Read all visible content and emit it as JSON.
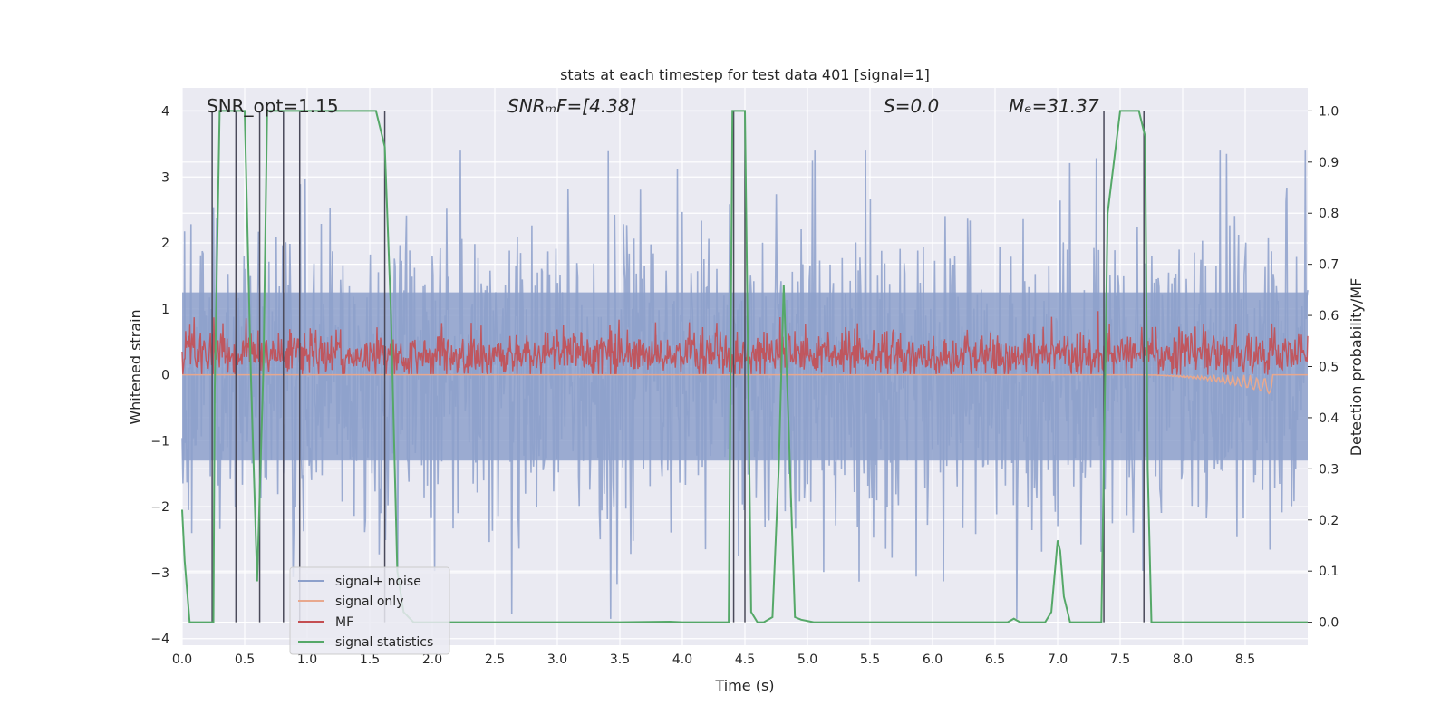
{
  "chart_data": {
    "type": "line",
    "title": "stats at each timestep for test data 401 [signal=1]",
    "xlabel": "Time (s)",
    "ylabel_left": "Whitened strain",
    "ylabel_right": "Detection probability/MF",
    "xlim": [
      0.0,
      9.0
    ],
    "ylim_left": [
      -4.1,
      4.35
    ],
    "ylim_right": [
      -0.045,
      1.045
    ],
    "x_ticks": [
      "0.0",
      "0.5",
      "1.0",
      "1.5",
      "2.0",
      "2.5",
      "3.0",
      "3.5",
      "4.0",
      "4.5",
      "5.0",
      "5.5",
      "6.0",
      "6.5",
      "7.0",
      "7.5",
      "8.0",
      "8.5"
    ],
    "y_left_ticks": [
      "−4",
      "−3",
      "−2",
      "−1",
      "0",
      "1",
      "2",
      "3",
      "4"
    ],
    "y_right_ticks": [
      "0.0",
      "0.1",
      "0.2",
      "0.3",
      "0.4",
      "0.5",
      "0.6",
      "0.7",
      "0.8",
      "0.9",
      "1.0"
    ],
    "grid": true,
    "legend_position": "lower-left",
    "annotations": [
      {
        "id": "snr-opt",
        "text": "SNR_opt=1.15"
      },
      {
        "id": "snr-mf",
        "text": "SNRₘF=[4.38]"
      },
      {
        "id": "s",
        "text": "S=0.0"
      },
      {
        "id": "mc",
        "text": "Mₑ=31.37"
      }
    ],
    "series": [
      {
        "name": "signal+ noise",
        "color": "#8da0cb",
        "axis": "left",
        "description": "whitened strain noise, amplitude approx -3.7..3.4"
      },
      {
        "name": "signal only",
        "color": "#e8a88e",
        "axis": "left",
        "description": "near zero, small chirp near t=8.2-8.7 down to -0.3"
      },
      {
        "name": "MF",
        "color": "#c44e52",
        "axis": "left",
        "description": "matched filter, approx 0..1.0, mean ~0.3"
      },
      {
        "name": "signal statistics",
        "color": "#55a868",
        "axis": "right",
        "x": [
          0.0,
          0.02,
          0.06,
          0.25,
          0.26,
          0.3,
          0.45,
          0.5,
          0.55,
          0.6,
          0.65,
          0.68,
          0.7,
          0.75,
          0.82,
          0.87,
          0.92,
          0.97,
          1.0,
          1.2,
          1.4,
          1.55,
          1.62,
          1.67,
          1.72,
          1.77,
          1.85,
          2.0,
          2.5,
          3.0,
          3.5,
          3.9,
          4.0,
          4.2,
          4.37,
          4.4,
          4.45,
          4.5,
          4.55,
          4.6,
          4.65,
          4.72,
          4.77,
          4.81,
          4.85,
          4.9,
          4.95,
          5.05,
          5.15,
          5.5,
          6.0,
          6.5,
          6.6,
          6.65,
          6.7,
          6.75,
          6.9,
          6.95,
          7.0,
          7.02,
          7.05,
          7.1,
          7.3,
          7.35,
          7.4,
          7.45,
          7.5,
          7.6,
          7.65,
          7.7,
          7.72,
          7.75,
          8.0,
          8.5,
          9.0
        ],
        "values": [
          0.22,
          0.12,
          0.0,
          0.0,
          0.45,
          1.0,
          1.0,
          1.0,
          0.48,
          0.08,
          0.5,
          1.0,
          1.0,
          1.0,
          1.0,
          1.0,
          1.0,
          1.0,
          1.0,
          1.0,
          1.0,
          1.0,
          0.93,
          0.6,
          0.1,
          0.02,
          0.0,
          0.0,
          0.0,
          0.0,
          0.0,
          0.001,
          0.0,
          0.0,
          0.0,
          1.0,
          1.0,
          1.0,
          0.02,
          0.0,
          0.0,
          0.01,
          0.3,
          0.66,
          0.38,
          0.01,
          0.005,
          0.0,
          0.0,
          0.0,
          0.0,
          0.0,
          0.0,
          0.007,
          0.0,
          0.0,
          0.0,
          0.02,
          0.16,
          0.14,
          0.05,
          0.0,
          0.0,
          0.0,
          0.8,
          0.9,
          1.0,
          1.0,
          1.0,
          0.95,
          0.3,
          0.0,
          0.0,
          0.0,
          0.0
        ]
      }
    ],
    "vertical_lines": {
      "color": "#4a4a5a",
      "x": [
        0.24,
        0.43,
        0.62,
        0.81,
        0.94,
        1.62,
        4.41,
        4.5,
        7.37,
        7.69
      ]
    },
    "legend": [
      {
        "label": "signal+ noise",
        "color": "#8da0cb"
      },
      {
        "label": "signal only",
        "color": "#e8a88e"
      },
      {
        "label": "MF",
        "color": "#c44e52"
      },
      {
        "label": "signal statistics",
        "color": "#55a868"
      }
    ],
    "colors": {
      "plot_background": "#eaeaf2",
      "grid": "#ffffff",
      "text": "#262626"
    }
  }
}
